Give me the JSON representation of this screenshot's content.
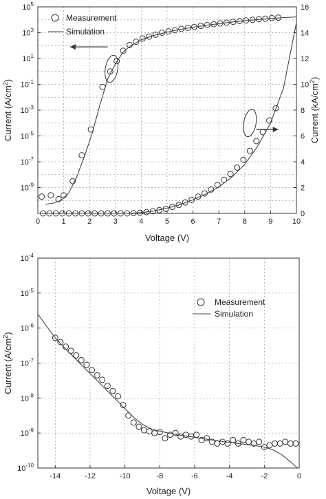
{
  "chart_data": [
    {
      "type": "scatter",
      "title": "",
      "xlabel": "Voltage (V)",
      "ylabel_left": "Current (A/cm²)",
      "ylabel_right": "Current (kA/cm²)",
      "xlim": [
        0,
        10
      ],
      "ylim_left_log_exp": [
        -11,
        5
      ],
      "ylim_right": [
        0,
        16
      ],
      "x_ticks": [
        "0",
        "1",
        "2",
        "3",
        "4",
        "5",
        "6",
        "7",
        "8",
        "9",
        "10"
      ],
      "y_left_ticks": [
        {
          "base": "10",
          "exp": "-9"
        },
        {
          "base": "10",
          "exp": "-7"
        },
        {
          "base": "10",
          "exp": "-5"
        },
        {
          "base": "10",
          "exp": "-3"
        },
        {
          "base": "10",
          "exp": "-1"
        },
        {
          "base": "10",
          "exp": "1"
        },
        {
          "base": "10",
          "exp": "3"
        },
        {
          "base": "10",
          "exp": "5"
        }
      ],
      "y_right_ticks": [
        "0",
        "2",
        "4",
        "6",
        "8",
        "10",
        "12",
        "14",
        "16"
      ],
      "grid": true,
      "legend_position": "top-left",
      "series": [
        {
          "name": "Measurement",
          "marker": "open-circle",
          "axis": "left-log",
          "x": [
            0.15,
            0.5,
            0.8,
            1.0,
            1.35,
            1.7,
            2.05,
            2.5,
            2.8,
            3.05,
            3.3,
            3.55,
            3.8,
            4.05,
            4.3,
            4.55,
            4.8,
            5.05,
            5.3,
            5.55,
            5.8,
            6.05,
            6.3,
            6.55,
            6.8,
            7.05,
            7.3,
            7.55,
            7.8,
            8.05,
            8.3,
            8.55,
            8.8,
            9.05,
            9.3
          ],
          "y_log10": [
            -9.7,
            -9.6,
            -9.9,
            -9.6,
            -8.5,
            -6.5,
            -4.5,
            -1.2,
            0.0,
            0.8,
            1.6,
            2.05,
            2.3,
            2.55,
            2.7,
            2.85,
            3.0,
            3.1,
            3.2,
            3.3,
            3.38,
            3.45,
            3.53,
            3.6,
            3.66,
            3.72,
            3.78,
            3.84,
            3.9,
            3.95,
            4.0,
            4.05,
            4.09,
            4.13,
            4.17
          ]
        },
        {
          "name": "Simulation",
          "line": "solid",
          "axis": "left-log",
          "x": [
            0.3,
            0.6,
            0.9,
            1.2,
            1.5,
            1.8,
            2.1,
            2.4,
            2.7,
            3.0,
            3.3,
            3.6,
            4.0,
            4.5,
            5.0,
            5.5,
            6.0,
            6.5,
            7.0,
            7.5,
            8.0,
            8.5,
            9.0,
            9.5,
            10.0
          ],
          "y_log10": [
            -10.3,
            -10.2,
            -10.0,
            -9.4,
            -8.2,
            -6.6,
            -4.8,
            -2.6,
            -0.6,
            0.6,
            1.5,
            2.0,
            2.45,
            2.8,
            3.05,
            3.25,
            3.42,
            3.57,
            3.7,
            3.82,
            3.93,
            4.02,
            4.1,
            4.17,
            4.22
          ]
        },
        {
          "name": "Measurement",
          "marker": "open-circle",
          "axis": "right-linear",
          "x": [
            0.2,
            0.45,
            0.7,
            0.95,
            1.2,
            1.45,
            1.7,
            1.95,
            2.2,
            2.45,
            2.7,
            2.95,
            3.2,
            3.45,
            3.7,
            3.95,
            4.2,
            4.45,
            4.7,
            4.95,
            5.2,
            5.45,
            5.7,
            5.95,
            6.2,
            6.45,
            6.7,
            6.95,
            7.2,
            7.45,
            7.7,
            7.95,
            8.2,
            8.45,
            8.7,
            8.95,
            9.2
          ],
          "y": [
            0,
            0,
            0,
            0,
            0,
            0,
            0,
            0,
            0,
            0,
            0,
            0,
            0,
            0,
            0.02,
            0.05,
            0.1,
            0.17,
            0.25,
            0.35,
            0.5,
            0.65,
            0.85,
            1.05,
            1.3,
            1.55,
            1.85,
            2.2,
            2.6,
            3.05,
            3.55,
            4.15,
            4.85,
            5.6,
            6.3,
            7.2,
            8.15
          ]
        },
        {
          "name": "Simulation",
          "line": "solid",
          "axis": "right-linear",
          "x": [
            0,
            3.0,
            3.5,
            4.0,
            4.5,
            5.0,
            5.5,
            6.0,
            6.5,
            7.0,
            7.5,
            8.0,
            8.5,
            9.0,
            9.5,
            10.0
          ],
          "y": [
            0,
            0,
            0.01,
            0.06,
            0.2,
            0.4,
            0.68,
            1.05,
            1.5,
            2.05,
            2.8,
            3.8,
            5.2,
            7.0,
            9.7,
            14.8
          ]
        }
      ]
    },
    {
      "type": "scatter",
      "title": "",
      "xlabel": "Voltage (V)",
      "ylabel": "Current (A/cm²)",
      "xlim": [
        -15,
        0
      ],
      "ylim_log_exp": [
        -10,
        -4
      ],
      "x_ticks": [
        "-14",
        "-12",
        "-10",
        "-8",
        "-6",
        "-4",
        "-2",
        "0"
      ],
      "y_ticks": [
        {
          "base": "10",
          "exp": "-10"
        },
        {
          "base": "10",
          "exp": "-9"
        },
        {
          "base": "10",
          "exp": "-8"
        },
        {
          "base": "10",
          "exp": "-7"
        },
        {
          "base": "10",
          "exp": "-6"
        },
        {
          "base": "10",
          "exp": "-5"
        },
        {
          "base": "10",
          "exp": "-4"
        }
      ],
      "grid": true,
      "legend_position": "top-right",
      "series": [
        {
          "name": "Measurement",
          "marker": "open-circle",
          "x": [
            -14.0,
            -13.7,
            -13.4,
            -13.1,
            -12.8,
            -12.5,
            -12.2,
            -11.9,
            -11.6,
            -11.3,
            -11.0,
            -10.7,
            -10.4,
            -10.1,
            -9.8,
            -9.5,
            -9.2,
            -8.9,
            -8.6,
            -8.3,
            -8.0,
            -7.7,
            -7.4,
            -7.1,
            -6.8,
            -6.5,
            -6.2,
            -5.9,
            -5.6,
            -5.3,
            -5.0,
            -4.7,
            -4.4,
            -4.1,
            -3.8,
            -3.5,
            -3.2,
            -2.9,
            -2.6,
            -2.3,
            -2.0,
            -1.7,
            -1.4,
            -1.1,
            -0.8,
            -0.5,
            -0.2
          ],
          "y_log10": [
            -6.28,
            -6.4,
            -6.53,
            -6.65,
            -6.78,
            -6.92,
            -7.05,
            -7.2,
            -7.35,
            -7.48,
            -7.65,
            -7.8,
            -7.95,
            -8.2,
            -8.5,
            -8.7,
            -8.82,
            -8.92,
            -8.95,
            -9.0,
            -8.97,
            -9.15,
            -9.05,
            -9.0,
            -9.1,
            -9.05,
            -9.1,
            -9.05,
            -9.2,
            -9.15,
            -9.25,
            -9.3,
            -9.25,
            -9.3,
            -9.2,
            -9.3,
            -9.2,
            -9.25,
            -9.3,
            -9.25,
            -9.4,
            -9.35,
            -9.3,
            -9.3,
            -9.25,
            -9.3,
            -9.3
          ]
        },
        {
          "name": "Simulation",
          "line": "solid",
          "x": [
            -15.0,
            -14.5,
            -14.0,
            -13.5,
            -13.0,
            -12.5,
            -12.0,
            -11.5,
            -11.0,
            -10.5,
            -10.0,
            -9.5,
            -9.0,
            -8.5,
            -8.0,
            -7.0,
            -6.0,
            -5.0,
            -4.0,
            -3.0,
            -2.5,
            -2.0,
            -1.5,
            -1.0,
            -0.5,
            -0.1
          ],
          "y_log10": [
            -5.6,
            -5.95,
            -6.28,
            -6.55,
            -6.8,
            -7.05,
            -7.3,
            -7.55,
            -7.8,
            -8.05,
            -8.3,
            -8.55,
            -8.75,
            -8.88,
            -8.95,
            -9.05,
            -9.12,
            -9.2,
            -9.27,
            -9.33,
            -9.36,
            -9.4,
            -9.48,
            -9.62,
            -9.82,
            -10.0
          ]
        }
      ]
    }
  ]
}
